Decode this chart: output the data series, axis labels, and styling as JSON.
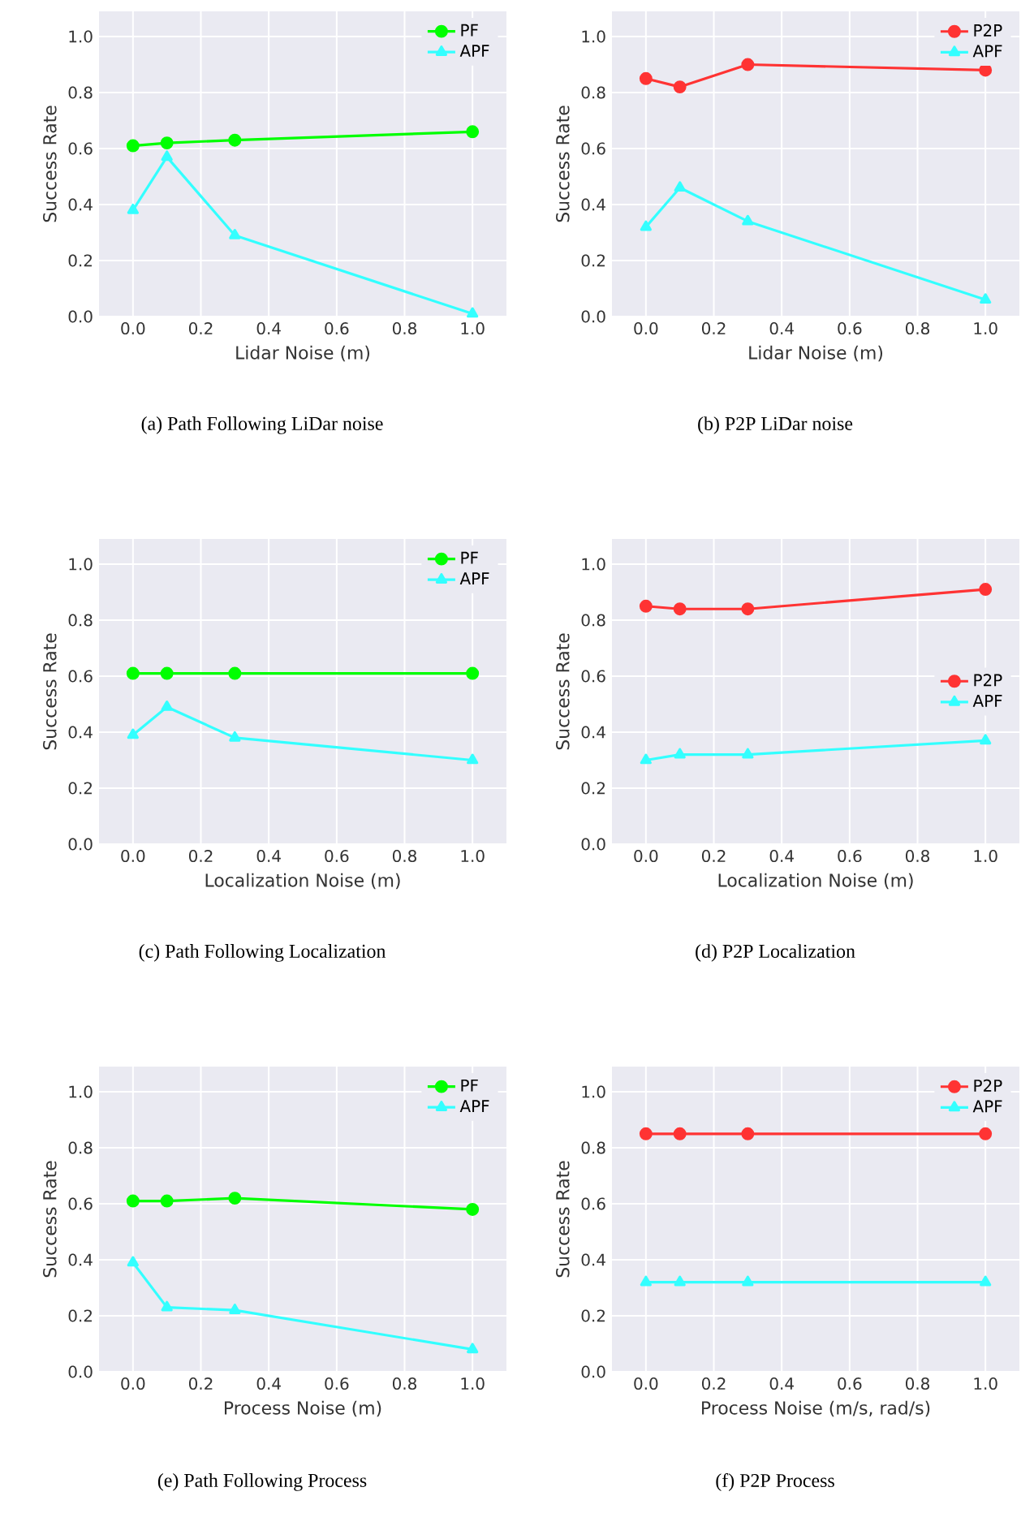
{
  "chart_data": [
    {
      "type": "line",
      "xlabel": "Lidar Noise (m)",
      "ylabel": "Success Rate",
      "annotations": [
        "(a) Path Following LiDar noise"
      ],
      "x": [
        0,
        0.1,
        0.3,
        1.0
      ],
      "xlim": [
        -0.1,
        1.1
      ],
      "ylim": [
        0,
        1.09
      ],
      "xticks": [
        {
          "value": 0,
          "label": "0.0"
        },
        {
          "value": 0.2,
          "label": "0.2"
        },
        {
          "value": 0.4,
          "label": "0.4"
        },
        {
          "value": 0.6,
          "label": "0.6"
        },
        {
          "value": 0.8,
          "label": "0.8"
        },
        {
          "value": 1,
          "label": "1.0"
        }
      ],
      "yticks": [
        {
          "value": 0,
          "label": "0.0"
        },
        {
          "value": 0.2,
          "label": "0.2"
        },
        {
          "value": 0.4,
          "label": "0.4"
        },
        {
          "value": 0.6,
          "label": "0.6"
        },
        {
          "value": 0.8,
          "label": "0.8"
        },
        {
          "value": 1,
          "label": "1.0"
        }
      ],
      "grid": true,
      "legend": "top right",
      "series": [
        {
          "name": "PF",
          "color": "#00ff00",
          "marker": "circle",
          "values": [
            0.61,
            0.62,
            0.63,
            0.66
          ]
        },
        {
          "name": "APF",
          "color": "#33ffff",
          "marker": "triangle",
          "values": [
            0.38,
            0.57,
            0.29,
            0.01
          ]
        }
      ]
    },
    {
      "type": "line",
      "xlabel": "Lidar Noise (m)",
      "ylabel": "Success Rate",
      "annotations": [
        "(b) P2P LiDar noise"
      ],
      "x": [
        0,
        0.1,
        0.3,
        1.0
      ],
      "xlim": [
        -0.1,
        1.1
      ],
      "ylim": [
        0,
        1.09
      ],
      "xticks": [
        {
          "value": 0,
          "label": "0.0"
        },
        {
          "value": 0.2,
          "label": "0.2"
        },
        {
          "value": 0.4,
          "label": "0.4"
        },
        {
          "value": 0.6,
          "label": "0.6"
        },
        {
          "value": 0.8,
          "label": "0.8"
        },
        {
          "value": 1,
          "label": "1.0"
        }
      ],
      "yticks": [
        {
          "value": 0,
          "label": "0.0"
        },
        {
          "value": 0.2,
          "label": "0.2"
        },
        {
          "value": 0.4,
          "label": "0.4"
        },
        {
          "value": 0.6,
          "label": "0.6"
        },
        {
          "value": 0.8,
          "label": "0.8"
        },
        {
          "value": 1,
          "label": "1.0"
        }
      ],
      "grid": true,
      "legend": "top right",
      "series": [
        {
          "name": "P2P",
          "color": "#ff3333",
          "marker": "circle",
          "values": [
            0.85,
            0.82,
            0.9,
            0.88
          ]
        },
        {
          "name": "APF",
          "color": "#33ffff",
          "marker": "triangle",
          "values": [
            0.32,
            0.46,
            0.34,
            0.06
          ]
        }
      ]
    },
    {
      "type": "line",
      "xlabel": "Localization Noise (m)",
      "ylabel": "Success Rate",
      "annotations": [
        "(c) Path Following Localization"
      ],
      "x": [
        0,
        0.1,
        0.3,
        1.0
      ],
      "xlim": [
        -0.1,
        1.1
      ],
      "ylim": [
        0,
        1.09
      ],
      "xticks": [
        {
          "value": 0,
          "label": "0.0"
        },
        {
          "value": 0.2,
          "label": "0.2"
        },
        {
          "value": 0.4,
          "label": "0.4"
        },
        {
          "value": 0.6,
          "label": "0.6"
        },
        {
          "value": 0.8,
          "label": "0.8"
        },
        {
          "value": 1,
          "label": "1.0"
        }
      ],
      "yticks": [
        {
          "value": 0,
          "label": "0.0"
        },
        {
          "value": 0.2,
          "label": "0.2"
        },
        {
          "value": 0.4,
          "label": "0.4"
        },
        {
          "value": 0.6,
          "label": "0.6"
        },
        {
          "value": 0.8,
          "label": "0.8"
        },
        {
          "value": 1,
          "label": "1.0"
        }
      ],
      "grid": true,
      "legend": "top right",
      "series": [
        {
          "name": "PF",
          "color": "#00ff00",
          "marker": "circle",
          "values": [
            0.61,
            0.61,
            0.61,
            0.61
          ]
        },
        {
          "name": "APF",
          "color": "#33ffff",
          "marker": "triangle",
          "values": [
            0.39,
            0.49,
            0.38,
            0.3
          ]
        }
      ]
    },
    {
      "type": "line",
      "xlabel": "Localization Noise (m)",
      "ylabel": "Success Rate",
      "annotations": [
        "(d) P2P Localization"
      ],
      "x": [
        0,
        0.1,
        0.3,
        1.0
      ],
      "xlim": [
        -0.1,
        1.1
      ],
      "ylim": [
        0,
        1.09
      ],
      "xticks": [
        {
          "value": 0,
          "label": "0.0"
        },
        {
          "value": 0.2,
          "label": "0.2"
        },
        {
          "value": 0.4,
          "label": "0.4"
        },
        {
          "value": 0.6,
          "label": "0.6"
        },
        {
          "value": 0.8,
          "label": "0.8"
        },
        {
          "value": 1,
          "label": "1.0"
        }
      ],
      "yticks": [
        {
          "value": 0,
          "label": "0.0"
        },
        {
          "value": 0.2,
          "label": "0.2"
        },
        {
          "value": 0.4,
          "label": "0.4"
        },
        {
          "value": 0.6,
          "label": "0.6"
        },
        {
          "value": 0.8,
          "label": "0.8"
        },
        {
          "value": 1,
          "label": "1.0"
        }
      ],
      "grid": true,
      "legend": "right",
      "series": [
        {
          "name": "P2P",
          "color": "#ff3333",
          "marker": "circle",
          "values": [
            0.85,
            0.84,
            0.84,
            0.91
          ]
        },
        {
          "name": "APF",
          "color": "#33ffff",
          "marker": "triangle",
          "values": [
            0.3,
            0.32,
            0.32,
            0.37
          ]
        }
      ]
    },
    {
      "type": "line",
      "xlabel": "Process Noise (m)",
      "ylabel": "Success Rate",
      "annotations": [
        "(e) Path Following Process"
      ],
      "x": [
        0,
        0.1,
        0.3,
        1.0
      ],
      "xlim": [
        -0.1,
        1.1
      ],
      "ylim": [
        0,
        1.09
      ],
      "xticks": [
        {
          "value": 0,
          "label": "0.0"
        },
        {
          "value": 0.2,
          "label": "0.2"
        },
        {
          "value": 0.4,
          "label": "0.4"
        },
        {
          "value": 0.6,
          "label": "0.6"
        },
        {
          "value": 0.8,
          "label": "0.8"
        },
        {
          "value": 1,
          "label": "1.0"
        }
      ],
      "yticks": [
        {
          "value": 0,
          "label": "0.0"
        },
        {
          "value": 0.2,
          "label": "0.2"
        },
        {
          "value": 0.4,
          "label": "0.4"
        },
        {
          "value": 0.6,
          "label": "0.6"
        },
        {
          "value": 0.8,
          "label": "0.8"
        },
        {
          "value": 1,
          "label": "1.0"
        }
      ],
      "grid": true,
      "legend": "top right",
      "series": [
        {
          "name": "PF",
          "color": "#00ff00",
          "marker": "circle",
          "values": [
            0.61,
            0.61,
            0.62,
            0.58
          ]
        },
        {
          "name": "APF",
          "color": "#33ffff",
          "marker": "triangle",
          "values": [
            0.39,
            0.23,
            0.22,
            0.08
          ]
        }
      ]
    },
    {
      "type": "line",
      "xlabel": "Process Noise (m/s, rad/s)",
      "ylabel": "Success Rate",
      "annotations": [
        "(f) P2P Process"
      ],
      "x": [
        0,
        0.1,
        0.3,
        1.0
      ],
      "xlim": [
        -0.1,
        1.1
      ],
      "ylim": [
        0,
        1.09
      ],
      "xticks": [
        {
          "value": 0,
          "label": "0.0"
        },
        {
          "value": 0.2,
          "label": "0.2"
        },
        {
          "value": 0.4,
          "label": "0.4"
        },
        {
          "value": 0.6,
          "label": "0.6"
        },
        {
          "value": 0.8,
          "label": "0.8"
        },
        {
          "value": 1,
          "label": "1.0"
        }
      ],
      "yticks": [
        {
          "value": 0,
          "label": "0.0"
        },
        {
          "value": 0.2,
          "label": "0.2"
        },
        {
          "value": 0.4,
          "label": "0.4"
        },
        {
          "value": 0.6,
          "label": "0.6"
        },
        {
          "value": 0.8,
          "label": "0.8"
        },
        {
          "value": 1,
          "label": "1.0"
        }
      ],
      "grid": true,
      "legend": "top right",
      "series": [
        {
          "name": "P2P",
          "color": "#ff3333",
          "marker": "circle",
          "values": [
            0.85,
            0.85,
            0.85,
            0.85
          ]
        },
        {
          "name": "APF",
          "color": "#33ffff",
          "marker": "triangle",
          "values": [
            0.32,
            0.32,
            0.32,
            0.32
          ]
        }
      ]
    }
  ]
}
